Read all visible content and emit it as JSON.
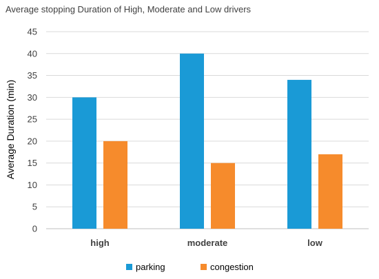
{
  "chart_data": {
    "type": "bar",
    "title": "Average stopping Duration of High, Moderate and Low drivers",
    "xlabel": "",
    "ylabel": "Average Duration (min)",
    "categories": [
      "high",
      "moderate",
      "low"
    ],
    "series": [
      {
        "name": "parking",
        "values": [
          30,
          40,
          34
        ],
        "color": "#1a9ad6"
      },
      {
        "name": "congestion",
        "values": [
          20,
          15,
          17
        ],
        "color": "#f68b2c"
      }
    ],
    "ylim": [
      0,
      45
    ],
    "yticks": [
      0,
      5,
      10,
      15,
      20,
      25,
      30,
      35,
      40,
      45
    ],
    "grid": true,
    "legend_position": "bottom"
  }
}
